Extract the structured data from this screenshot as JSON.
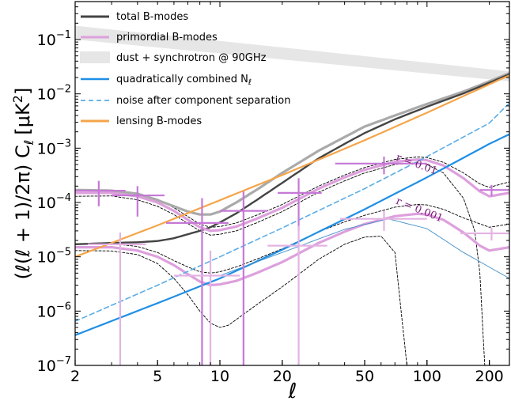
{
  "chart_data": {
    "type": "line",
    "xlabel": "ℓ",
    "ylabel": "(ℓ(ℓ + 1)/2π) C",
    "ylabel_sub": "ℓ",
    "ylabel_units": "[μK",
    "ylabel_units_sup": "2",
    "ylabel_units_close": "]",
    "xscale": "log",
    "yscale": "log",
    "xlim": [
      2,
      250
    ],
    "ylim": [
      1e-07,
      0.5
    ],
    "xticks": [
      {
        "value": 2,
        "label": "2"
      },
      {
        "value": 5,
        "label": "5"
      },
      {
        "value": 10,
        "label": "10"
      },
      {
        "value": 20,
        "label": "20"
      },
      {
        "value": 50,
        "label": "50"
      },
      {
        "value": 100,
        "label": "100"
      },
      {
        "value": 200,
        "label": "200"
      }
    ],
    "yticks": [
      {
        "value": 1e-07,
        "base": "10",
        "exp": "−7"
      },
      {
        "value": 1e-06,
        "base": "10",
        "exp": "−6"
      },
      {
        "value": 1e-05,
        "base": "10",
        "exp": "−5"
      },
      {
        "value": 0.0001,
        "base": "10",
        "exp": "−4"
      },
      {
        "value": 0.001,
        "base": "10",
        "exp": "−3"
      },
      {
        "value": 0.01,
        "base": "10",
        "exp": "−2"
      },
      {
        "value": 0.1,
        "base": "10",
        "exp": "−1"
      }
    ],
    "legend": {
      "placement": "top-left",
      "entries": [
        {
          "label": "total B-modes",
          "color": "#444444",
          "style": "solid"
        },
        {
          "label": "primordial B-modes",
          "color": "#dda0dd",
          "style": "solid"
        },
        {
          "label": "dust + synchrotron @ 90GHz",
          "color": "#e6e6e6",
          "style": "band"
        },
        {
          "label": "quadratically combined N",
          "sub": "ℓ",
          "color": "#1f8fe6",
          "style": "solid"
        },
        {
          "label": "noise after component separation",
          "color": "#5aade6",
          "style": "dashed"
        },
        {
          "label": "lensing B-modes",
          "color": "#f5a54a",
          "style": "solid"
        }
      ]
    },
    "annotations": [
      {
        "text": "r = 0.01",
        "x": 100,
        "y": 0.0007,
        "rotation": 20
      },
      {
        "text": "r = 0.001",
        "x": 100,
        "y": 0.00011,
        "rotation": 22
      }
    ],
    "series": [
      {
        "key": "foreground_upper",
        "color": "#e6e6e6",
        "x": [
          2,
          250
        ],
        "y": [
          0.18,
          0.026
        ]
      },
      {
        "key": "foreground_lower",
        "color": "#e6e6e6",
        "x": [
          2,
          250
        ],
        "y": [
          0.1,
          0.017
        ]
      },
      {
        "key": "total_r001",
        "color": "#aaaaaa",
        "width": 3.2,
        "x": [
          2,
          3,
          4,
          5,
          6,
          7,
          8,
          9,
          10,
          12,
          15,
          20,
          30,
          40,
          50,
          70,
          100,
          150,
          200,
          250
        ],
        "y": [
          0.00017,
          0.000165,
          0.000145,
          0.00011,
          8.5e-05,
          6.8e-05,
          6e-05,
          6e-05,
          6.8e-05,
          0.0001,
          0.00017,
          0.00035,
          0.0009,
          0.0016,
          0.0025,
          0.004,
          0.0065,
          0.011,
          0.017,
          0.024
        ]
      },
      {
        "key": "total_r0001",
        "color": "#444444",
        "width": 2.4,
        "x": [
          2,
          3,
          4,
          5,
          6,
          7,
          8,
          9,
          10,
          12,
          15,
          20,
          30,
          40,
          50,
          70,
          100,
          150,
          200,
          250
        ],
        "y": [
          1.7e-05,
          1.8e-05,
          1.85e-05,
          1.95e-05,
          2.2e-05,
          2.6e-05,
          3e-05,
          3.5e-05,
          4.3e-05,
          6.3e-05,
          0.00011,
          0.00023,
          0.00065,
          0.0012,
          0.0019,
          0.0034,
          0.0058,
          0.0102,
          0.016,
          0.023
        ]
      },
      {
        "key": "primordial_r001",
        "color": "#dda0dd",
        "width": 3.2,
        "x": [
          2,
          3,
          4,
          5,
          6,
          7,
          8,
          9,
          10,
          12,
          15,
          20,
          30,
          40,
          50,
          70,
          90,
          100,
          120,
          150,
          180,
          200,
          250
        ],
        "y": [
          0.00015,
          0.00015,
          0.00013,
          0.0001,
          7e-05,
          4.8e-05,
          3.5e-05,
          3e-05,
          3.1e-05,
          3.6e-05,
          5e-05,
          8e-05,
          0.00018,
          0.00029,
          0.0004,
          0.00056,
          0.00062,
          0.0006,
          0.00048,
          0.00028,
          0.00016,
          0.00013,
          0.00015
        ]
      },
      {
        "key": "primordial_r0001",
        "color": "#dda0dd",
        "width": 3.2,
        "x": [
          2,
          3,
          4,
          5,
          6,
          7,
          8,
          9,
          10,
          12,
          15,
          20,
          30,
          40,
          50,
          70,
          90,
          100,
          120,
          150,
          180,
          200,
          250
        ],
        "y": [
          1.5e-05,
          1.5e-05,
          1.3e-05,
          1e-05,
          7e-06,
          4.8e-06,
          3.5e-06,
          3e-06,
          3.1e-06,
          3.6e-06,
          5e-06,
          8e-06,
          1.8e-05,
          2.9e-05,
          4e-05,
          5.6e-05,
          6.2e-05,
          6e-05,
          4.8e-05,
          2.8e-05,
          1.6e-05,
          1.3e-05,
          1.5e-05
        ]
      },
      {
        "key": "lensing",
        "color": "#f5a54a",
        "width": 2.2,
        "x": [
          2,
          3,
          5,
          10,
          20,
          50,
          100,
          200,
          250
        ],
        "y": [
          1e-05,
          1.8e-05,
          3.8e-05,
          0.00011,
          0.00032,
          0.0014,
          0.0045,
          0.015,
          0.022
        ]
      },
      {
        "key": "noise_combined",
        "color": "#1f8fe6",
        "width": 2.2,
        "x": [
          2,
          5,
          10,
          20,
          50,
          100,
          200,
          250
        ],
        "y": [
          3.6e-07,
          1.4e-06,
          4e-06,
          1.35e-05,
          7.5e-05,
          0.00029,
          0.0012,
          0.0018
        ]
      },
      {
        "key": "noise_separated",
        "color": "#5aade6",
        "width": 1.6,
        "dash": "6,4",
        "x": [
          2,
          5,
          10,
          20,
          50,
          100,
          200,
          250
        ],
        "y": [
          6.5e-07,
          3e-06,
          1e-05,
          3.4e-05,
          0.00018,
          0.0007,
          0.0029,
          0.0068
        ]
      },
      {
        "key": "thin_signal",
        "color": "#3f8fc9",
        "width": 0.9,
        "x": [
          10,
          20,
          40,
          65,
          100,
          150,
          250
        ],
        "y": [
          4.5e-06,
          1.2e-05,
          3.2e-05,
          5e-05,
          3.3e-05,
          1.2e-05,
          4e-06
        ]
      },
      {
        "key": "err_r001_upper",
        "color": "#000000",
        "width": 0.9,
        "dash": "3,2",
        "x": [
          2,
          3,
          4,
          5,
          6,
          7,
          8,
          9,
          10,
          12,
          15,
          20,
          30,
          40,
          50,
          70,
          90,
          100,
          120,
          150,
          180,
          200,
          250
        ],
        "y": [
          0.00017,
          0.000168,
          0.000148,
          0.000115,
          8e-05,
          5.5e-05,
          4e-05,
          3.5e-05,
          3.6e-05,
          4.2e-05,
          5.8e-05,
          9.2e-05,
          0.0002,
          0.00032,
          0.00044,
          0.00062,
          0.00069,
          0.00067,
          0.00055,
          0.00035,
          0.00022,
          0.00019,
          0.00024
        ]
      },
      {
        "key": "err_r001_lower",
        "color": "#000000",
        "width": 0.9,
        "dash": "3,2",
        "x": [
          2,
          3,
          4,
          5,
          6,
          7,
          8,
          9,
          10,
          12,
          15,
          20,
          30,
          40,
          50,
          70,
          90,
          100,
          120,
          150,
          170,
          180,
          190
        ],
        "y": [
          0.00013,
          0.000132,
          0.000112,
          8.5e-05,
          6e-05,
          4.1e-05,
          3e-05,
          2.5e-05,
          2.6e-05,
          3e-05,
          4.2e-05,
          6.8e-05,
          0.000155,
          0.00025,
          0.00035,
          0.0005,
          0.00054,
          0.0005,
          0.00035,
          0.00012,
          3e-05,
          5e-06,
          1e-07
        ]
      },
      {
        "key": "err_r0001_upper",
        "color": "#000000",
        "width": 0.9,
        "dash": "3,2",
        "x": [
          2,
          3,
          4,
          5,
          6,
          7,
          8,
          9,
          10,
          12,
          15,
          20,
          30,
          40,
          50,
          70,
          90,
          100,
          120,
          150,
          200,
          250
        ],
        "y": [
          1.75e-05,
          1.75e-05,
          1.55e-05,
          1.2e-05,
          8.5e-06,
          6.5e-06,
          5.3e-06,
          5e-06,
          5.3e-06,
          6.5e-06,
          9e-06,
          1.4e-05,
          2.9e-05,
          4.4e-05,
          5.8e-05,
          8.2e-05,
          9.2e-05,
          9e-05,
          7.5e-05,
          5.2e-05,
          3.5e-05,
          4e-05
        ]
      },
      {
        "key": "err_r0001_lower",
        "color": "#000000",
        "width": 0.9,
        "dash": "3,2",
        "x": [
          2,
          3,
          4,
          5,
          6,
          7,
          8,
          9,
          10,
          11,
          12,
          15,
          20,
          30,
          40,
          50,
          60,
          70,
          75,
          80
        ],
        "y": [
          1.3e-05,
          1.28e-05,
          1.1e-05,
          7.5e-06,
          4e-06,
          2e-06,
          1e-06,
          6e-07,
          5e-07,
          5.5e-07,
          7e-07,
          1.3e-06,
          2.8e-06,
          9e-06,
          1.7e-05,
          2.3e-05,
          2.4e-05,
          1.2e-05,
          1e-06,
          1e-07
        ]
      }
    ],
    "binned_points": [
      {
        "key": "r001",
        "color": "#c678d6",
        "width": 2.2,
        "points": [
          {
            "x": 2.6,
            "xlo": 2.0,
            "xhi": 3.5,
            "y": 0.000165,
            "ylo": 8.5e-05,
            "yhi": 0.00025
          },
          {
            "x": 4.0,
            "xlo": 3.0,
            "xhi": 5.4,
            "y": 0.000135,
            "ylo": 5.5e-05,
            "yhi": 0.0002
          },
          {
            "x": 8.2,
            "xlo": 5.5,
            "xhi": 11.0,
            "y": 4.2e-05,
            "ylo": 1e-07,
            "yhi": 0.00012
          },
          {
            "x": 13.0,
            "xlo": 10.0,
            "xhi": 17.0,
            "y": 7e-05,
            "ylo": 1e-07,
            "yhi": 0.00016
          },
          {
            "x": 24.0,
            "xlo": 19.0,
            "xhi": 31.0,
            "y": 0.00015,
            "ylo": 3e-05,
            "yhi": 0.00028
          },
          {
            "x": 62.0,
            "xlo": 36.0,
            "xhi": 100.0,
            "y": 0.00052,
            "ylo": 0.00033,
            "yhi": 0.0007
          },
          {
            "x": 205.0,
            "xlo": 180.0,
            "xhi": 250.0,
            "y": 0.00017,
            "ylo": 0.00013,
            "yhi": 0.00021
          }
        ]
      },
      {
        "key": "r0001",
        "color": "#e3b3e3",
        "width": 2.2,
        "points": [
          {
            "x": 3.3,
            "xlo": 2.3,
            "xhi": 4.4,
            "y": 1.7e-05,
            "ylo": 1e-07,
            "yhi": 2.8e-05
          },
          {
            "x": 9.0,
            "xlo": 6.0,
            "xhi": 12.5,
            "y": 4.5e-06,
            "ylo": 1e-07,
            "yhi": 1.3e-05
          },
          {
            "x": 24.0,
            "xlo": 17.0,
            "xhi": 33.0,
            "y": 1.6e-05,
            "ylo": 1e-07,
            "yhi": 3.7e-05
          },
          {
            "x": 62.0,
            "xlo": 38.0,
            "xhi": 100.0,
            "y": 5e-05,
            "ylo": 3e-05,
            "yhi": 7e-05
          },
          {
            "x": 205.0,
            "xlo": 145.0,
            "xhi": 250.0,
            "y": 2.7e-05,
            "ylo": 2e-05,
            "yhi": 3.4e-05
          }
        ]
      }
    ]
  }
}
